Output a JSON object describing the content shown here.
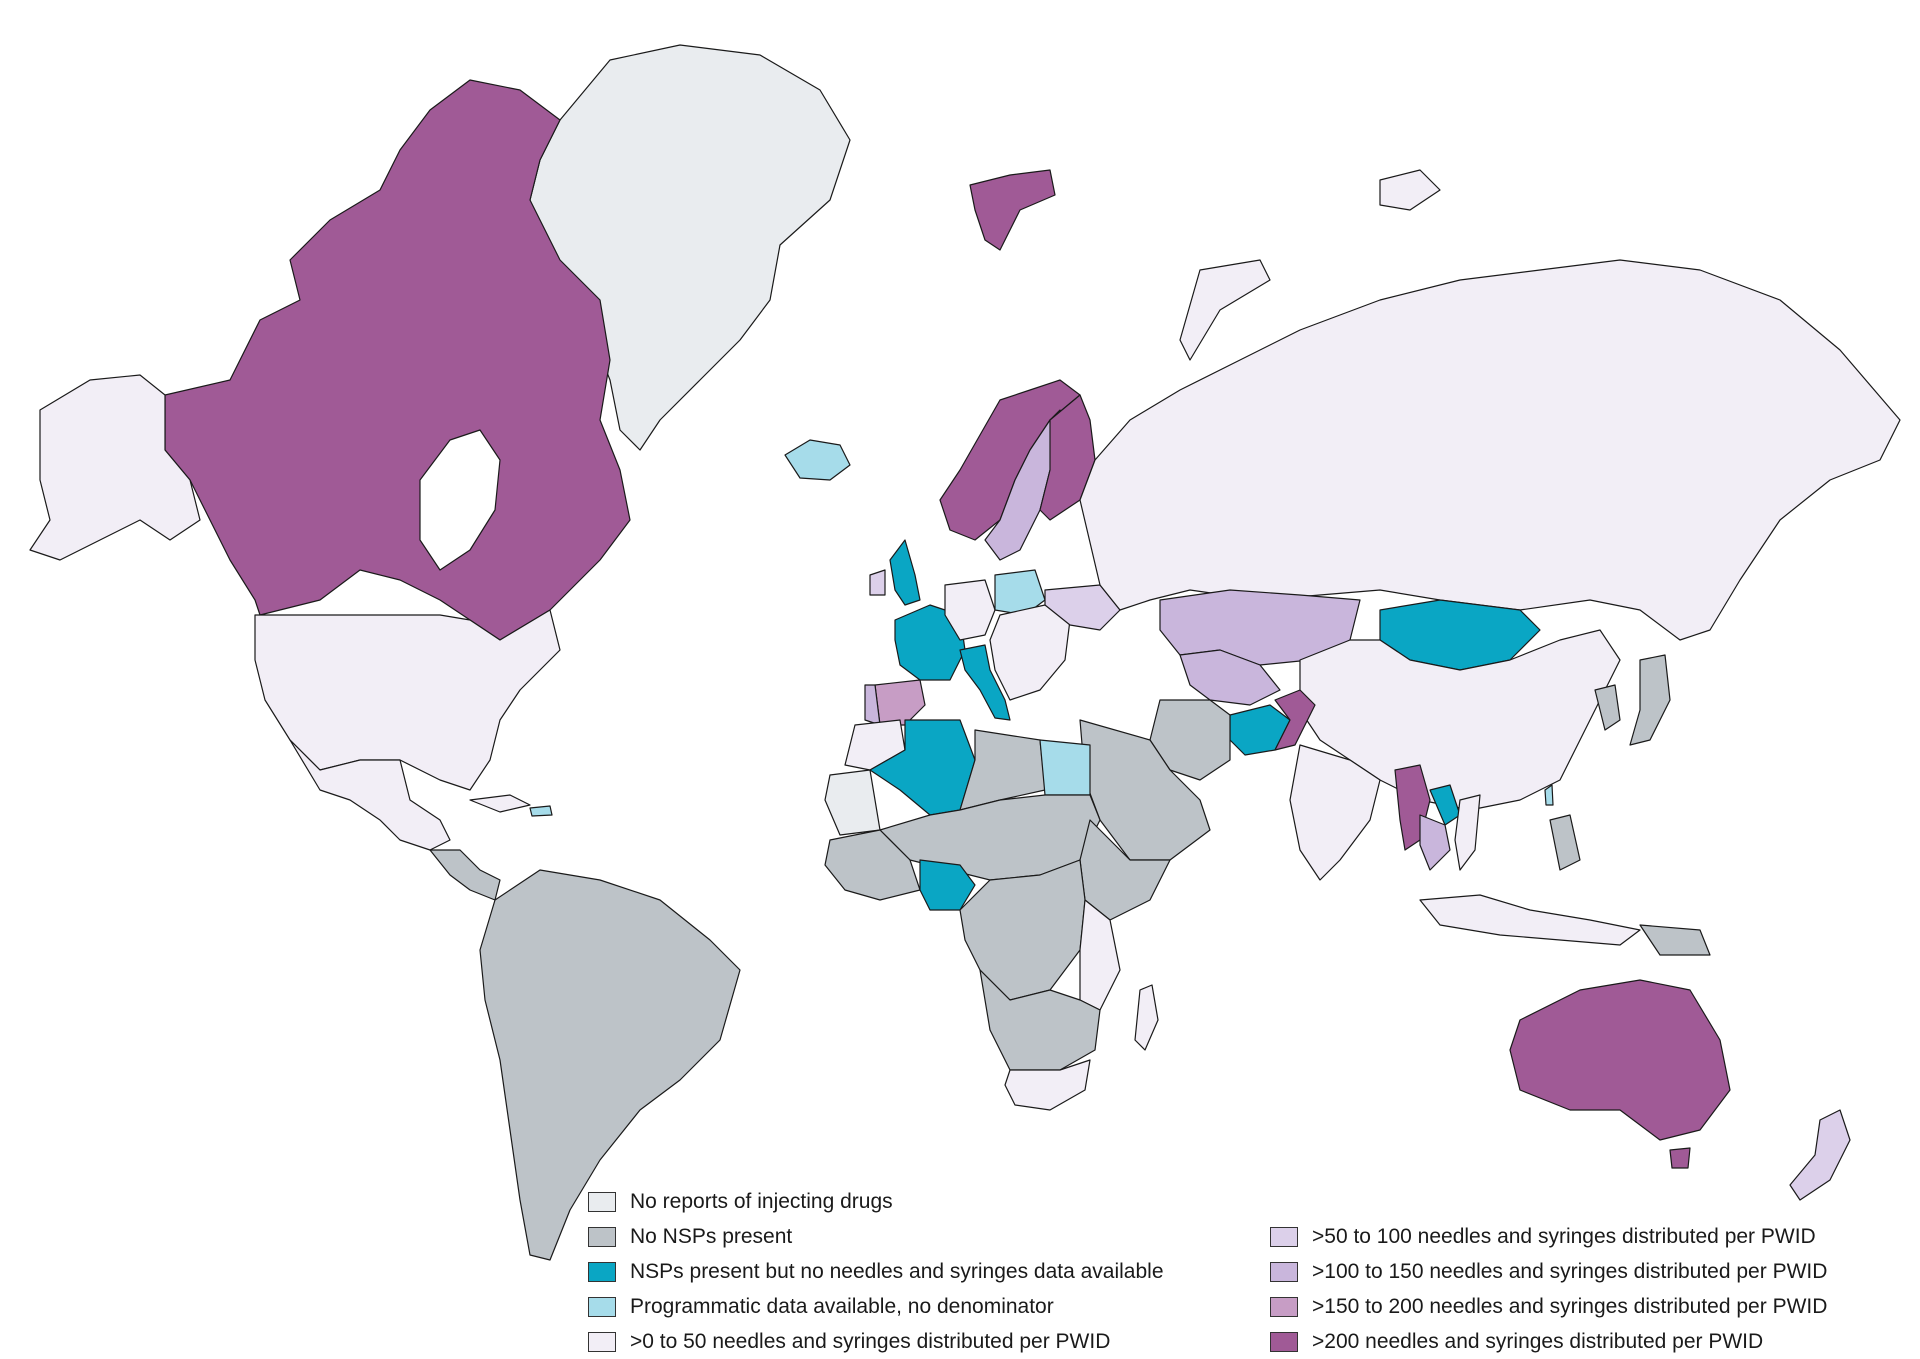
{
  "colors": {
    "no_reports": "#e9ecef",
    "no_nsp": "#bdc3c8",
    "nsp_no_data": "#0aa6c4",
    "programmatic": "#a6dcea",
    "c0_50": "#f2eef6",
    "c50_100": "#dcd0ea",
    "c100_150": "#c9b6dc",
    "c150_200": "#c79dc5",
    "c200_plus": "#a05a96"
  },
  "legend": {
    "left": [
      {
        "label": "No reports of injecting drugs",
        "color_key": "no_reports"
      },
      {
        "label": "No NSPs present",
        "color_key": "no_nsp"
      },
      {
        "label": "NSPs present but no needles and syringes data available",
        "color_key": "nsp_no_data"
      },
      {
        "label": "Programmatic data available, no denominator",
        "color_key": "programmatic"
      },
      {
        "label": ">0 to 50 needles and syringes distributed per PWID",
        "color_key": "c0_50"
      }
    ],
    "right": [
      {
        "label": ">50 to 100 needles and syringes distributed per PWID",
        "color_key": "c50_100"
      },
      {
        "label": ">100 to 150 needles and syringes distributed per PWID",
        "color_key": "c100_150"
      },
      {
        "label": ">150 to 200 needles and syringes distributed per PWID",
        "color_key": "c150_200"
      },
      {
        "label": ">200 needles and syringes distributed per PWID",
        "color_key": "c200_plus"
      }
    ]
  },
  "regions": [
    {
      "name": "greenland",
      "category": "no_reports"
    },
    {
      "name": "canada",
      "category": "c200_plus"
    },
    {
      "name": "alaska",
      "category": "c0_50"
    },
    {
      "name": "usa",
      "category": "c0_50"
    },
    {
      "name": "mexico",
      "category": "c0_50"
    },
    {
      "name": "central-america",
      "category": "no_nsp"
    },
    {
      "name": "south-america",
      "category": "no_nsp"
    },
    {
      "name": "iceland",
      "category": "programmatic"
    },
    {
      "name": "svalbard",
      "category": "c200_plus"
    },
    {
      "name": "norway",
      "category": "c200_plus"
    },
    {
      "name": "sweden",
      "category": "c100_150"
    },
    {
      "name": "finland",
      "category": "c200_plus"
    },
    {
      "name": "uk",
      "category": "nsp_no_data"
    },
    {
      "name": "ireland",
      "category": "c50_100"
    },
    {
      "name": "france",
      "category": "nsp_no_data"
    },
    {
      "name": "spain",
      "category": "c150_200"
    },
    {
      "name": "portugal",
      "category": "c100_150"
    },
    {
      "name": "italy",
      "category": "nsp_no_data"
    },
    {
      "name": "germany",
      "category": "c0_50"
    },
    {
      "name": "poland",
      "category": "programmatic"
    },
    {
      "name": "eastern-europe",
      "category": "c0_50"
    },
    {
      "name": "ukraine",
      "category": "c50_100"
    },
    {
      "name": "russia",
      "category": "c0_50"
    },
    {
      "name": "kazakhstan",
      "category": "c100_150"
    },
    {
      "name": "central-asia",
      "category": "c100_150"
    },
    {
      "name": "mongolia",
      "category": "nsp_no_data"
    },
    {
      "name": "china",
      "category": "c0_50"
    },
    {
      "name": "afghanistan",
      "category": "nsp_no_data"
    },
    {
      "name": "pakistan",
      "category": "c200_plus"
    },
    {
      "name": "iran",
      "category": "no_nsp"
    },
    {
      "name": "arabia",
      "category": "no_nsp"
    },
    {
      "name": "india",
      "category": "c0_50"
    },
    {
      "name": "myanmar",
      "category": "c200_plus"
    },
    {
      "name": "laos",
      "category": "nsp_no_data"
    },
    {
      "name": "thailand",
      "category": "c100_150"
    },
    {
      "name": "vietnam",
      "category": "c0_50"
    },
    {
      "name": "japan",
      "category": "no_nsp"
    },
    {
      "name": "korea",
      "category": "no_nsp"
    },
    {
      "name": "taiwan",
      "category": "programmatic"
    },
    {
      "name": "philippines",
      "category": "no_nsp"
    },
    {
      "name": "indonesia",
      "category": "c0_50"
    },
    {
      "name": "papua",
      "category": "no_nsp"
    },
    {
      "name": "australia",
      "category": "c200_plus"
    },
    {
      "name": "tasmania",
      "category": "c200_plus"
    },
    {
      "name": "new-zealand",
      "category": "c50_100"
    },
    {
      "name": "algeria",
      "category": "nsp_no_data"
    },
    {
      "name": "morocco",
      "category": "c0_50"
    },
    {
      "name": "mauritania",
      "category": "no_reports"
    },
    {
      "name": "egypt",
      "category": "programmatic"
    },
    {
      "name": "libya",
      "category": "no_nsp"
    },
    {
      "name": "sahel",
      "category": "no_nsp"
    },
    {
      "name": "west-africa",
      "category": "no_nsp"
    },
    {
      "name": "nigeria",
      "category": "nsp_no_data"
    },
    {
      "name": "central-africa",
      "category": "no_nsp"
    },
    {
      "name": "east-africa",
      "category": "c0_50"
    },
    {
      "name": "horn-of-africa",
      "category": "no_nsp"
    },
    {
      "name": "southern-africa",
      "category": "no_nsp"
    },
    {
      "name": "south-africa",
      "category": "c0_50"
    },
    {
      "name": "madagascar",
      "category": "c0_50"
    },
    {
      "name": "cuba-caribbean",
      "category": "c0_50"
    },
    {
      "name": "haiti-dr",
      "category": "programmatic"
    },
    {
      "name": "arctic-islands-ru",
      "category": "c0_50"
    },
    {
      "name": "novaya-zemlya",
      "category": "c0_50"
    }
  ]
}
